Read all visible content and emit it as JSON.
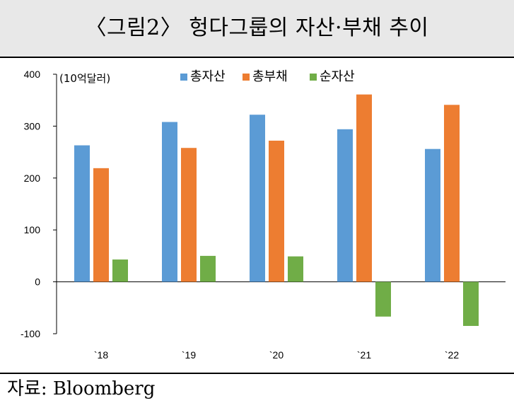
{
  "title": "〈그림2〉 헝다그룹의 자산·부채 추이",
  "source": "자료: Bloomberg",
  "chart_data": {
    "type": "bar",
    "unit": "(10억달러)",
    "categories": [
      "`18",
      "`19",
      "`20",
      "`21",
      "`22"
    ],
    "series": [
      {
        "name": "총자산",
        "color": "#5b9bd5",
        "values": [
          263,
          308,
          322,
          294,
          256
        ]
      },
      {
        "name": "총부채",
        "color": "#ed7d31",
        "values": [
          219,
          258,
          272,
          361,
          341
        ]
      },
      {
        "name": "순자산",
        "color": "#70ad47",
        "values": [
          43,
          50,
          49,
          -67,
          -85
        ]
      }
    ],
    "yticks": [
      400,
      300,
      200,
      100,
      0,
      -100
    ],
    "ylim": [
      -100,
      400
    ],
    "grid": false,
    "legend": "top"
  }
}
